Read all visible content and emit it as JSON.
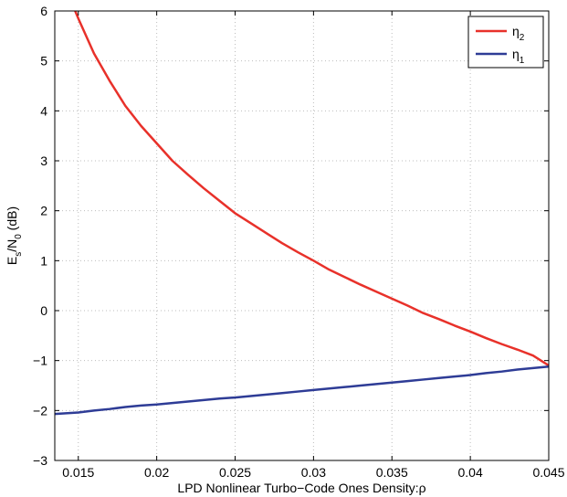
{
  "chart_data": {
    "type": "line",
    "xlabel": "LPD Nonlinear Turbo−Code Ones Density:ρ",
    "ylabel": {
      "base": "E",
      "sub1": "s",
      "mid": "/N",
      "sub2": "0",
      "tail": " (dB)"
    },
    "xlim": [
      0.0135,
      0.045
    ],
    "ylim": [
      -3,
      6
    ],
    "grid": true,
    "legend_position": "top-right",
    "x_ticks": [
      0.015,
      0.02,
      0.025,
      0.03,
      0.035,
      0.04,
      0.045
    ],
    "x_tick_labels": [
      "0.015",
      "0.02",
      "0.025",
      "0.03",
      "0.035",
      "0.04",
      "0.045"
    ],
    "y_ticks": [
      -3,
      -2,
      -1,
      0,
      1,
      2,
      3,
      4,
      5,
      6
    ],
    "y_tick_labels": [
      "−3",
      "−2",
      "−1",
      "0",
      "1",
      "2",
      "3",
      "4",
      "5",
      "6"
    ],
    "series": [
      {
        "name": "η",
        "name_sub": "2",
        "color": "#e8312a",
        "x": [
          0.0148,
          0.015,
          0.016,
          0.017,
          0.018,
          0.019,
          0.02,
          0.021,
          0.022,
          0.023,
          0.024,
          0.025,
          0.026,
          0.027,
          0.028,
          0.029,
          0.03,
          0.031,
          0.032,
          0.033,
          0.034,
          0.035,
          0.036,
          0.037,
          0.038,
          0.039,
          0.04,
          0.041,
          0.042,
          0.043,
          0.044,
          0.045
        ],
        "y": [
          6.0,
          5.85,
          5.15,
          4.6,
          4.1,
          3.7,
          3.35,
          3.0,
          2.72,
          2.45,
          2.2,
          1.95,
          1.75,
          1.55,
          1.35,
          1.17,
          1.0,
          0.82,
          0.67,
          0.52,
          0.38,
          0.24,
          0.1,
          -0.05,
          -0.17,
          -0.3,
          -0.42,
          -0.55,
          -0.67,
          -0.78,
          -0.9,
          -1.1
        ]
      },
      {
        "name": "η",
        "name_sub": "1",
        "color": "#2e3c96",
        "x": [
          0.0135,
          0.015,
          0.016,
          0.017,
          0.018,
          0.019,
          0.02,
          0.021,
          0.022,
          0.023,
          0.024,
          0.025,
          0.026,
          0.027,
          0.028,
          0.029,
          0.03,
          0.031,
          0.032,
          0.033,
          0.034,
          0.035,
          0.036,
          0.037,
          0.038,
          0.039,
          0.04,
          0.041,
          0.042,
          0.043,
          0.044,
          0.045
        ],
        "y": [
          -2.07,
          -2.04,
          -2.0,
          -1.97,
          -1.93,
          -1.9,
          -1.88,
          -1.85,
          -1.82,
          -1.79,
          -1.76,
          -1.74,
          -1.71,
          -1.68,
          -1.65,
          -1.62,
          -1.59,
          -1.56,
          -1.53,
          -1.5,
          -1.47,
          -1.44,
          -1.41,
          -1.38,
          -1.35,
          -1.32,
          -1.29,
          -1.25,
          -1.22,
          -1.18,
          -1.15,
          -1.12
        ]
      }
    ]
  }
}
